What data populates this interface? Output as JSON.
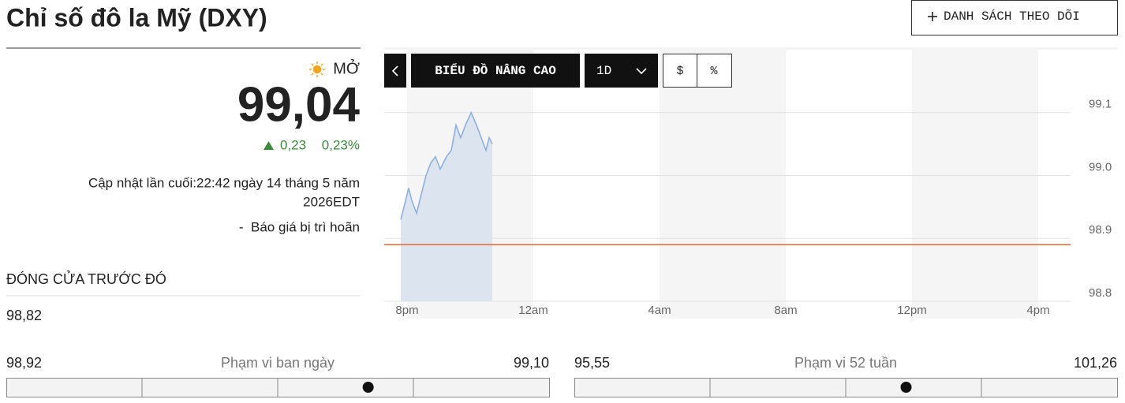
{
  "header": {
    "title": "Chỉ số đô la Mỹ (DXY)",
    "watchlist_button": "DANH SÁCH THEO DÕI"
  },
  "quote": {
    "status": "MỞ",
    "price": {
      "value": 99.04,
      "label": "99,04"
    },
    "change": "0,23",
    "change_pct": "0,23%",
    "updated": [
      "Cập nhật lần cuối:22:42 ngày 14 tháng 5 năm",
      "2026EDT"
    ],
    "delay": "-  Báo giá bị trì hoãn",
    "prev_close_label": "ĐÓNG CỬA TRƯỚC ĐÓ",
    "prev_close": "98,82"
  },
  "ranges": [
    {
      "label": "Phạm vi ban ngày",
      "low": {
        "value": 98.92,
        "label": "98,92"
      },
      "high": {
        "value": 99.1,
        "label": "99,10"
      }
    },
    {
      "label": "Phạm vi 52 tuần",
      "low": {
        "value": 95.55,
        "label": "95,55"
      },
      "high": {
        "value": 101.26,
        "label": "101,26"
      }
    }
  ],
  "chart_data": {
    "type": "line",
    "toolbar": {
      "advanced": "BIỂU ĐỒ NÂNG CAO",
      "interval": "1D",
      "currency": "$",
      "percent": "%"
    },
    "xlim": [
      -0.725,
      21.025
    ],
    "ylim": [
      98.8,
      99.2
    ],
    "xticks": [
      {
        "value": 0,
        "label": "8pm"
      },
      {
        "value": 4,
        "label": "12am"
      },
      {
        "value": 8,
        "label": "4am"
      },
      {
        "value": 12,
        "label": "8am"
      },
      {
        "value": 16,
        "label": "12pm"
      },
      {
        "value": 20,
        "label": "4pm"
      }
    ],
    "yticks": [
      {
        "value": 98.8,
        "label": "98.8"
      },
      {
        "value": 98.9,
        "label": "98.9"
      },
      {
        "value": 99,
        "label": "99.0"
      },
      {
        "value": 99.1,
        "label": "99.1"
      }
    ],
    "grid": true,
    "shaded_bands": [
      [
        0,
        4
      ],
      [
        8,
        12
      ],
      [
        16,
        20
      ]
    ],
    "reference_line": {
      "value": 98.89,
      "color": "#e8692d"
    },
    "series": [
      {
        "color": "#8fb0de",
        "fill": "#dce4ef",
        "x": [
          -0.2,
          -0.1,
          0.05,
          0.15,
          0.3,
          0.45,
          0.6,
          0.75,
          0.9,
          1.05,
          1.25,
          1.4,
          1.55,
          1.7,
          1.85,
          2.03,
          2.2,
          2.35,
          2.5,
          2.6,
          2.7
        ],
        "values": [
          98.93,
          98.95,
          98.98,
          98.96,
          98.94,
          98.97,
          99.0,
          99.02,
          99.03,
          99.01,
          99.03,
          99.04,
          99.08,
          99.06,
          99.08,
          99.1,
          99.08,
          99.06,
          99.04,
          99.06,
          99.05
        ]
      }
    ]
  }
}
